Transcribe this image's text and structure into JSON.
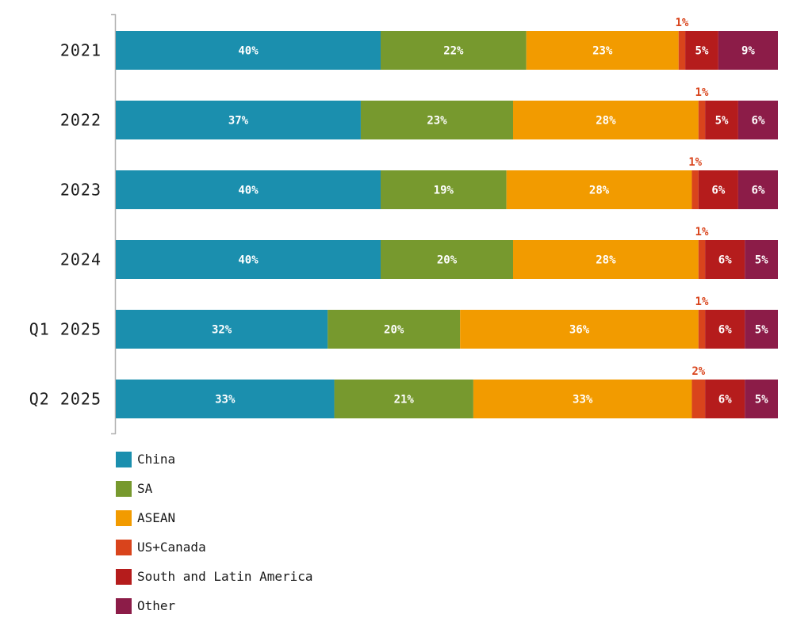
{
  "chart_data": {
    "type": "bar",
    "orientation": "horizontal",
    "stacked": true,
    "categories": [
      "2021",
      "2022",
      "2023",
      "2024",
      "Q1 2025",
      "Q2 2025"
    ],
    "series": [
      {
        "name": "China",
        "color": "#1b8fae",
        "values": [
          40,
          37,
          40,
          40,
          32,
          33
        ]
      },
      {
        "name": "SA",
        "color": "#77992e",
        "values": [
          22,
          23,
          19,
          20,
          20,
          21
        ]
      },
      {
        "name": "ASEAN",
        "color": "#f29b00",
        "values": [
          23,
          28,
          28,
          28,
          36,
          33
        ]
      },
      {
        "name": "US+Canada",
        "color": "#d9441c",
        "values": [
          1,
          1,
          1,
          1,
          1,
          2
        ]
      },
      {
        "name": "South and Latin America",
        "color": "#b51c1c",
        "values": [
          5,
          5,
          6,
          6,
          6,
          6
        ]
      },
      {
        "name": "Other",
        "color": "#8c1c48",
        "values": [
          9,
          6,
          6,
          5,
          5,
          5
        ]
      }
    ],
    "value_suffix": "%",
    "legend_position": "bottom-left",
    "grid": false
  }
}
